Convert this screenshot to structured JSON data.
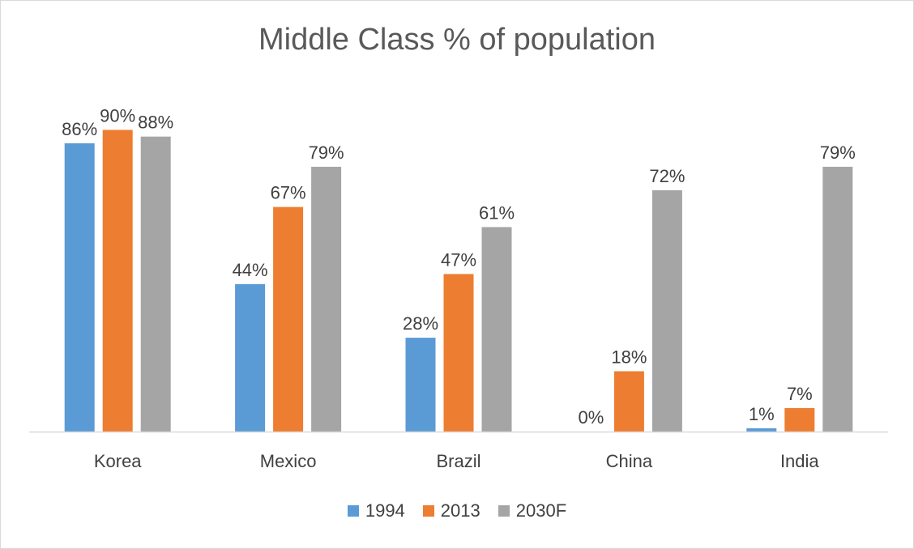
{
  "chart_data": {
    "type": "bar",
    "title": "Middle Class % of population",
    "categories": [
      "Korea",
      "Mexico",
      "Brazil",
      "China",
      "India"
    ],
    "series": [
      {
        "name": "1994",
        "color": "#5b9bd5",
        "values": [
          86,
          44,
          28,
          0,
          1
        ],
        "labels": [
          "86%",
          "44%",
          "28%",
          "0%",
          "1%"
        ]
      },
      {
        "name": "2013",
        "color": "#ed7d31",
        "values": [
          90,
          67,
          47,
          18,
          7
        ],
        "labels": [
          "90%",
          "67%",
          "47%",
          "18%",
          "7%"
        ]
      },
      {
        "name": "2030F",
        "color": "#a5a5a5",
        "values": [
          88,
          79,
          61,
          72,
          79
        ],
        "labels": [
          "88%",
          "79%",
          "61%",
          "72%",
          "79%"
        ]
      }
    ],
    "ylim": [
      0,
      100
    ],
    "grid": false,
    "legend_position": "bottom"
  }
}
